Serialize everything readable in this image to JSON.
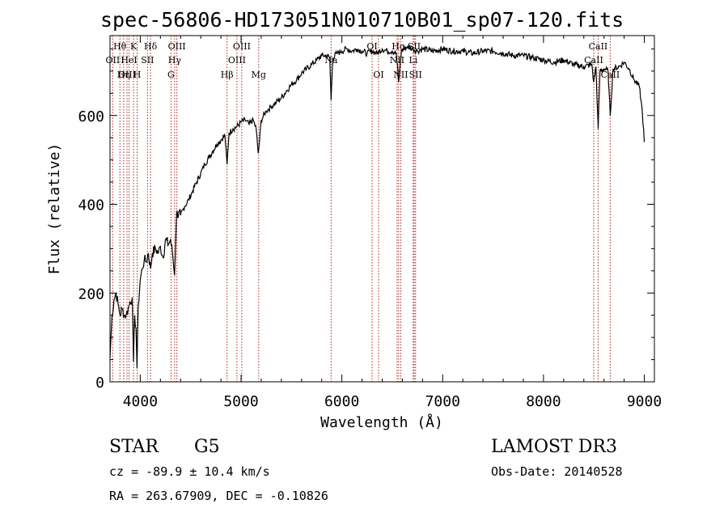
{
  "header": {
    "title": "spec-56806-HD173051N010710B01_sp07-120.fits"
  },
  "info": {
    "object_class": "STAR",
    "subclass": "G5",
    "survey": "LAMOST DR3",
    "cz": "cz = -89.9 ± 10.4 km/s",
    "obs_date": "Obs-Date: 20140528",
    "coords": "RA = 263.67909, DEC =  -0.10826"
  },
  "chart_data": {
    "type": "line",
    "title": "spec-56806-HD173051N010710B01_sp07-120.fits",
    "xlabel": "Wavelength (Å)",
    "ylabel": "Flux (relative)",
    "xlim": [
      3700,
      9100
    ],
    "ylim": [
      0,
      780
    ],
    "xticks": [
      4000,
      5000,
      6000,
      7000,
      8000,
      9000
    ],
    "yticks": [
      0,
      200,
      400,
      600
    ],
    "grid": false,
    "line_color": "#000000",
    "marker_color": "#b22222",
    "spectrum": [
      [
        3700,
        55
      ],
      [
        3720,
        150
      ],
      [
        3740,
        185
      ],
      [
        3760,
        200
      ],
      [
        3780,
        175
      ],
      [
        3800,
        150
      ],
      [
        3820,
        165
      ],
      [
        3840,
        150
      ],
      [
        3860,
        150
      ],
      [
        3880,
        165
      ],
      [
        3900,
        180
      ],
      [
        3920,
        190
      ],
      [
        3933,
        45
      ],
      [
        3945,
        150
      ],
      [
        3958,
        120
      ],
      [
        3968,
        30
      ],
      [
        3980,
        170
      ],
      [
        4000,
        230
      ],
      [
        4020,
        255
      ],
      [
        4040,
        275
      ],
      [
        4060,
        270
      ],
      [
        4080,
        290
      ],
      [
        4102,
        255
      ],
      [
        4120,
        290
      ],
      [
        4150,
        300
      ],
      [
        4180,
        290
      ],
      [
        4200,
        305
      ],
      [
        4226,
        280
      ],
      [
        4250,
        320
      ],
      [
        4280,
        310
      ],
      [
        4300,
        320
      ],
      [
        4320,
        290
      ],
      [
        4340,
        240
      ],
      [
        4360,
        380
      ],
      [
        4400,
        375
      ],
      [
        4440,
        395
      ],
      [
        4480,
        410
      ],
      [
        4520,
        430
      ],
      [
        4560,
        450
      ],
      [
        4600,
        470
      ],
      [
        4640,
        490
      ],
      [
        4680,
        505
      ],
      [
        4720,
        520
      ],
      [
        4760,
        535
      ],
      [
        4800,
        545
      ],
      [
        4840,
        555
      ],
      [
        4861,
        490
      ],
      [
        4880,
        560
      ],
      [
        4920,
        570
      ],
      [
        4960,
        575
      ],
      [
        5000,
        585
      ],
      [
        5040,
        590
      ],
      [
        5080,
        580
      ],
      [
        5120,
        590
      ],
      [
        5150,
        570
      ],
      [
        5170,
        515
      ],
      [
        5183,
        540
      ],
      [
        5200,
        590
      ],
      [
        5250,
        610
      ],
      [
        5300,
        620
      ],
      [
        5350,
        630
      ],
      [
        5400,
        640
      ],
      [
        5450,
        655
      ],
      [
        5500,
        670
      ],
      [
        5550,
        680
      ],
      [
        5600,
        695
      ],
      [
        5650,
        705
      ],
      [
        5700,
        715
      ],
      [
        5750,
        725
      ],
      [
        5800,
        735
      ],
      [
        5850,
        735
      ],
      [
        5880,
        730
      ],
      [
        5893,
        635
      ],
      [
        5910,
        730
      ],
      [
        5950,
        740
      ],
      [
        6000,
        745
      ],
      [
        6050,
        750
      ],
      [
        6100,
        745
      ],
      [
        6150,
        750
      ],
      [
        6200,
        745
      ],
      [
        6250,
        740
      ],
      [
        6300,
        745
      ],
      [
        6350,
        740
      ],
      [
        6400,
        750
      ],
      [
        6450,
        745
      ],
      [
        6500,
        745
      ],
      [
        6540,
        740
      ],
      [
        6563,
        675
      ],
      [
        6590,
        745
      ],
      [
        6650,
        755
      ],
      [
        6700,
        750
      ],
      [
        6750,
        745
      ],
      [
        6800,
        750
      ],
      [
        6900,
        745
      ],
      [
        7000,
        750
      ],
      [
        7100,
        745
      ],
      [
        7200,
        745
      ],
      [
        7300,
        740
      ],
      [
        7400,
        745
      ],
      [
        7500,
        745
      ],
      [
        7600,
        740
      ],
      [
        7700,
        735
      ],
      [
        7800,
        735
      ],
      [
        7900,
        730
      ],
      [
        8000,
        725
      ],
      [
        8100,
        720
      ],
      [
        8200,
        725
      ],
      [
        8300,
        715
      ],
      [
        8400,
        710
      ],
      [
        8480,
        715
      ],
      [
        8498,
        675
      ],
      [
        8520,
        710
      ],
      [
        8542,
        570
      ],
      [
        8560,
        700
      ],
      [
        8600,
        705
      ],
      [
        8640,
        700
      ],
      [
        8662,
        600
      ],
      [
        8690,
        705
      ],
      [
        8750,
        710
      ],
      [
        8800,
        720
      ],
      [
        8850,
        705
      ],
      [
        8900,
        680
      ],
      [
        8950,
        665
      ],
      [
        8980,
        610
      ],
      [
        9000,
        540
      ]
    ],
    "lines": [
      {
        "label": "Hθ",
        "x": 3798,
        "row": 0
      },
      {
        "label": "OII",
        "x": 3727,
        "row": 1
      },
      {
        "label": "OIII",
        "x": 3869,
        "row": 2
      },
      {
        "label": "K",
        "x": 3934,
        "row": 0
      },
      {
        "label": "HeI",
        "x": 3889,
        "row": 1
      },
      {
        "label": "Hη",
        "x": 3835,
        "row": 2
      },
      {
        "label": "Hδ",
        "x": 4102,
        "row": 0
      },
      {
        "label": "SII",
        "x": 4072,
        "row": 1
      },
      {
        "label": "H",
        "x": 3969,
        "row": 2
      },
      {
        "label": "OIII",
        "x": 4363,
        "row": 0
      },
      {
        "label": "Hγ",
        "x": 4341,
        "row": 1
      },
      {
        "label": "G",
        "x": 4305,
        "row": 2
      },
      {
        "label": "OIII",
        "x": 5007,
        "row": 0
      },
      {
        "label": "OIII",
        "x": 4959,
        "row": 1
      },
      {
        "label": "Hβ",
        "x": 4861,
        "row": 2
      },
      {
        "label": "Mg",
        "x": 5175,
        "row": 2
      },
      {
        "label": "Na",
        "x": 5893,
        "row": 1
      },
      {
        "label": "OI",
        "x": 6300,
        "row": 0
      },
      {
        "label": "OI",
        "x": 6364,
        "row": 2
      },
      {
        "label": "Hα",
        "x": 6563,
        "row": 0
      },
      {
        "label": "SII",
        "x": 6717,
        "row": 0
      },
      {
        "label": "NII",
        "x": 6548,
        "row": 1
      },
      {
        "label": "Li",
        "x": 6708,
        "row": 1
      },
      {
        "label": "NII",
        "x": 6584,
        "row": 2
      },
      {
        "label": "SII",
        "x": 6731,
        "row": 2
      },
      {
        "label": "CaII",
        "x": 8542,
        "row": 0
      },
      {
        "label": "CaII",
        "x": 8498,
        "row": 1
      },
      {
        "label": "CaII",
        "x": 8662,
        "row": 2
      }
    ]
  }
}
